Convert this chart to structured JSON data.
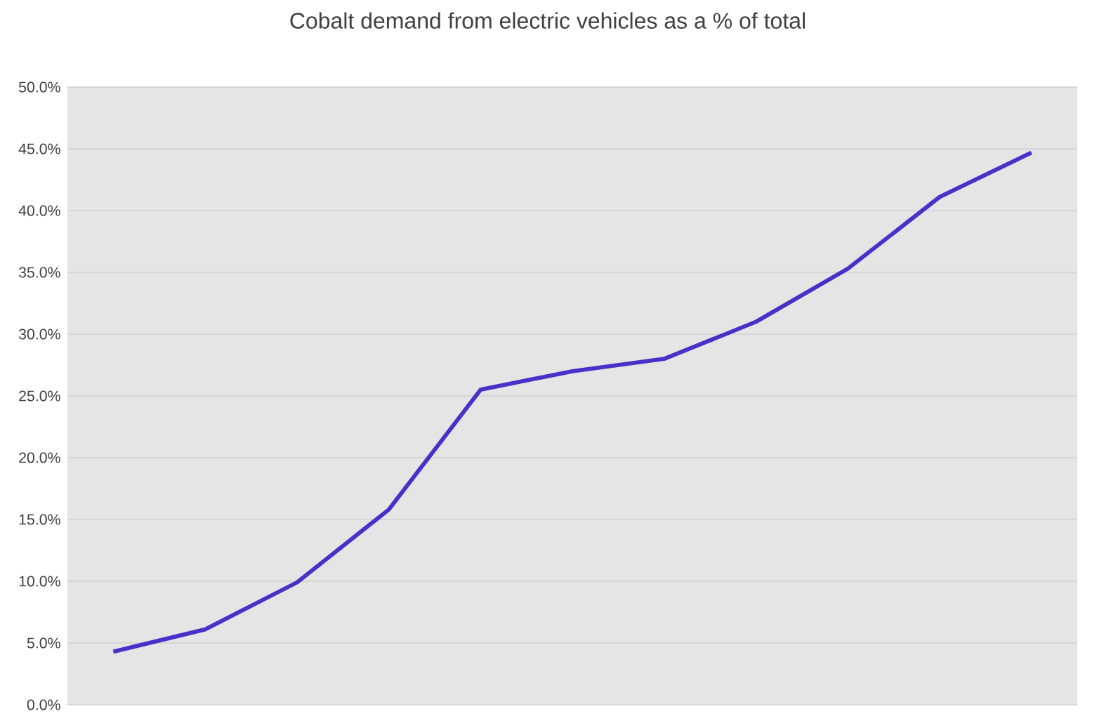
{
  "chart_data": {
    "type": "line",
    "title": "Cobalt demand from electric vehicles as a % of total",
    "categories": [
      null,
      null,
      null,
      null,
      null,
      null,
      null,
      null,
      null,
      null,
      null
    ],
    "series": [
      {
        "color": "#4a30c8",
        "values": [
          4.3,
          6.1,
          9.9,
          15.8,
          25.5,
          27.0,
          28.0,
          31.0,
          35.3,
          41.1,
          44.7
        ]
      }
    ],
    "ylim": [
      0,
      50
    ],
    "yticks": [
      {
        "value": 0,
        "label": "0.0%"
      },
      {
        "value": 5,
        "label": "5.0%"
      },
      {
        "value": 10,
        "label": "10.0%"
      },
      {
        "value": 15,
        "label": "15.0%"
      },
      {
        "value": 20,
        "label": "20.0%"
      },
      {
        "value": 25,
        "label": "25.0%"
      },
      {
        "value": 30,
        "label": "30.0%"
      },
      {
        "value": 35,
        "label": "35.0%"
      },
      {
        "value": 40,
        "label": "40.0%"
      },
      {
        "value": 45,
        "label": "45.0%"
      },
      {
        "value": 50,
        "label": "50.0%"
      }
    ],
    "grid": "y",
    "marker": "none",
    "line_style": "solid"
  }
}
